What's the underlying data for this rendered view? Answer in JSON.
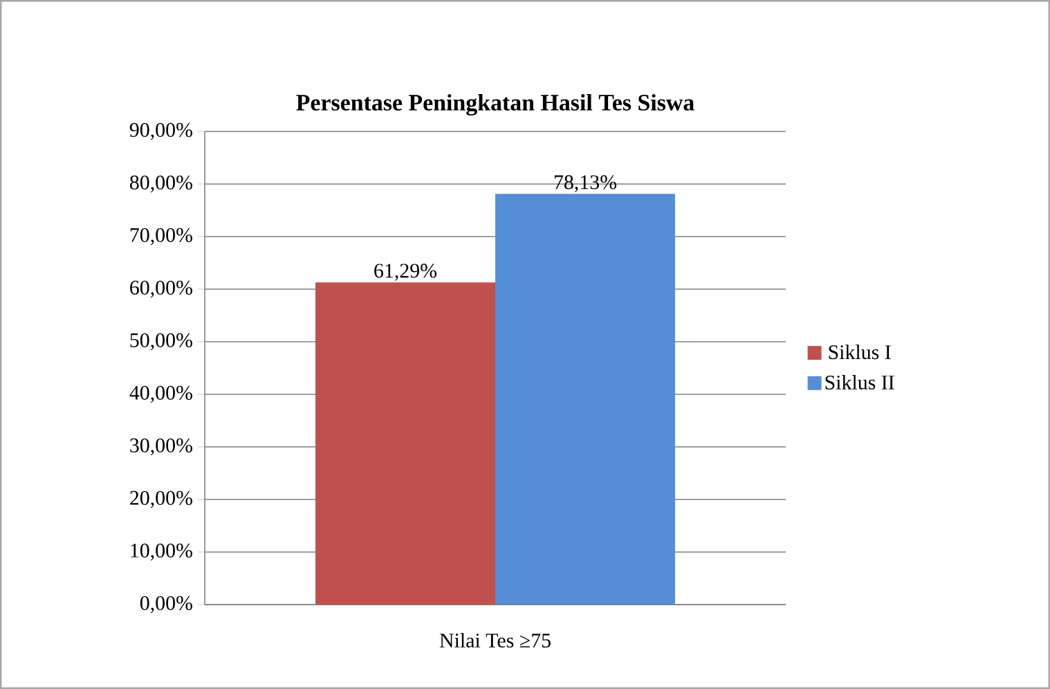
{
  "chart_data": {
    "type": "bar",
    "title": "Persentase Peningkatan Hasil Tes Siswa",
    "categories": [
      "Nilai Tes ≥75"
    ],
    "series": [
      {
        "name": "Siklus I",
        "color": "#c0504d",
        "values": [
          61.29
        ],
        "value_labels": [
          "61,29%"
        ]
      },
      {
        "name": "Siklus II",
        "color": "#558ed5",
        "values": [
          78.13
        ],
        "value_labels": [
          "78,13%"
        ]
      }
    ],
    "ylim": [
      0,
      90
    ],
    "yticks": [
      {
        "value": 0,
        "label": "0,00%"
      },
      {
        "value": 10,
        "label": "10,00%"
      },
      {
        "value": 20,
        "label": "20,00%"
      },
      {
        "value": 30,
        "label": "30,00%"
      },
      {
        "value": 40,
        "label": "40,00%"
      },
      {
        "value": 50,
        "label": "50,00%"
      },
      {
        "value": 60,
        "label": "60,00%"
      },
      {
        "value": 70,
        "label": "70,00%"
      },
      {
        "value": 80,
        "label": "80,00%"
      },
      {
        "value": 90,
        "label": "90,00%"
      }
    ],
    "grid": "y",
    "legend": "right"
  }
}
